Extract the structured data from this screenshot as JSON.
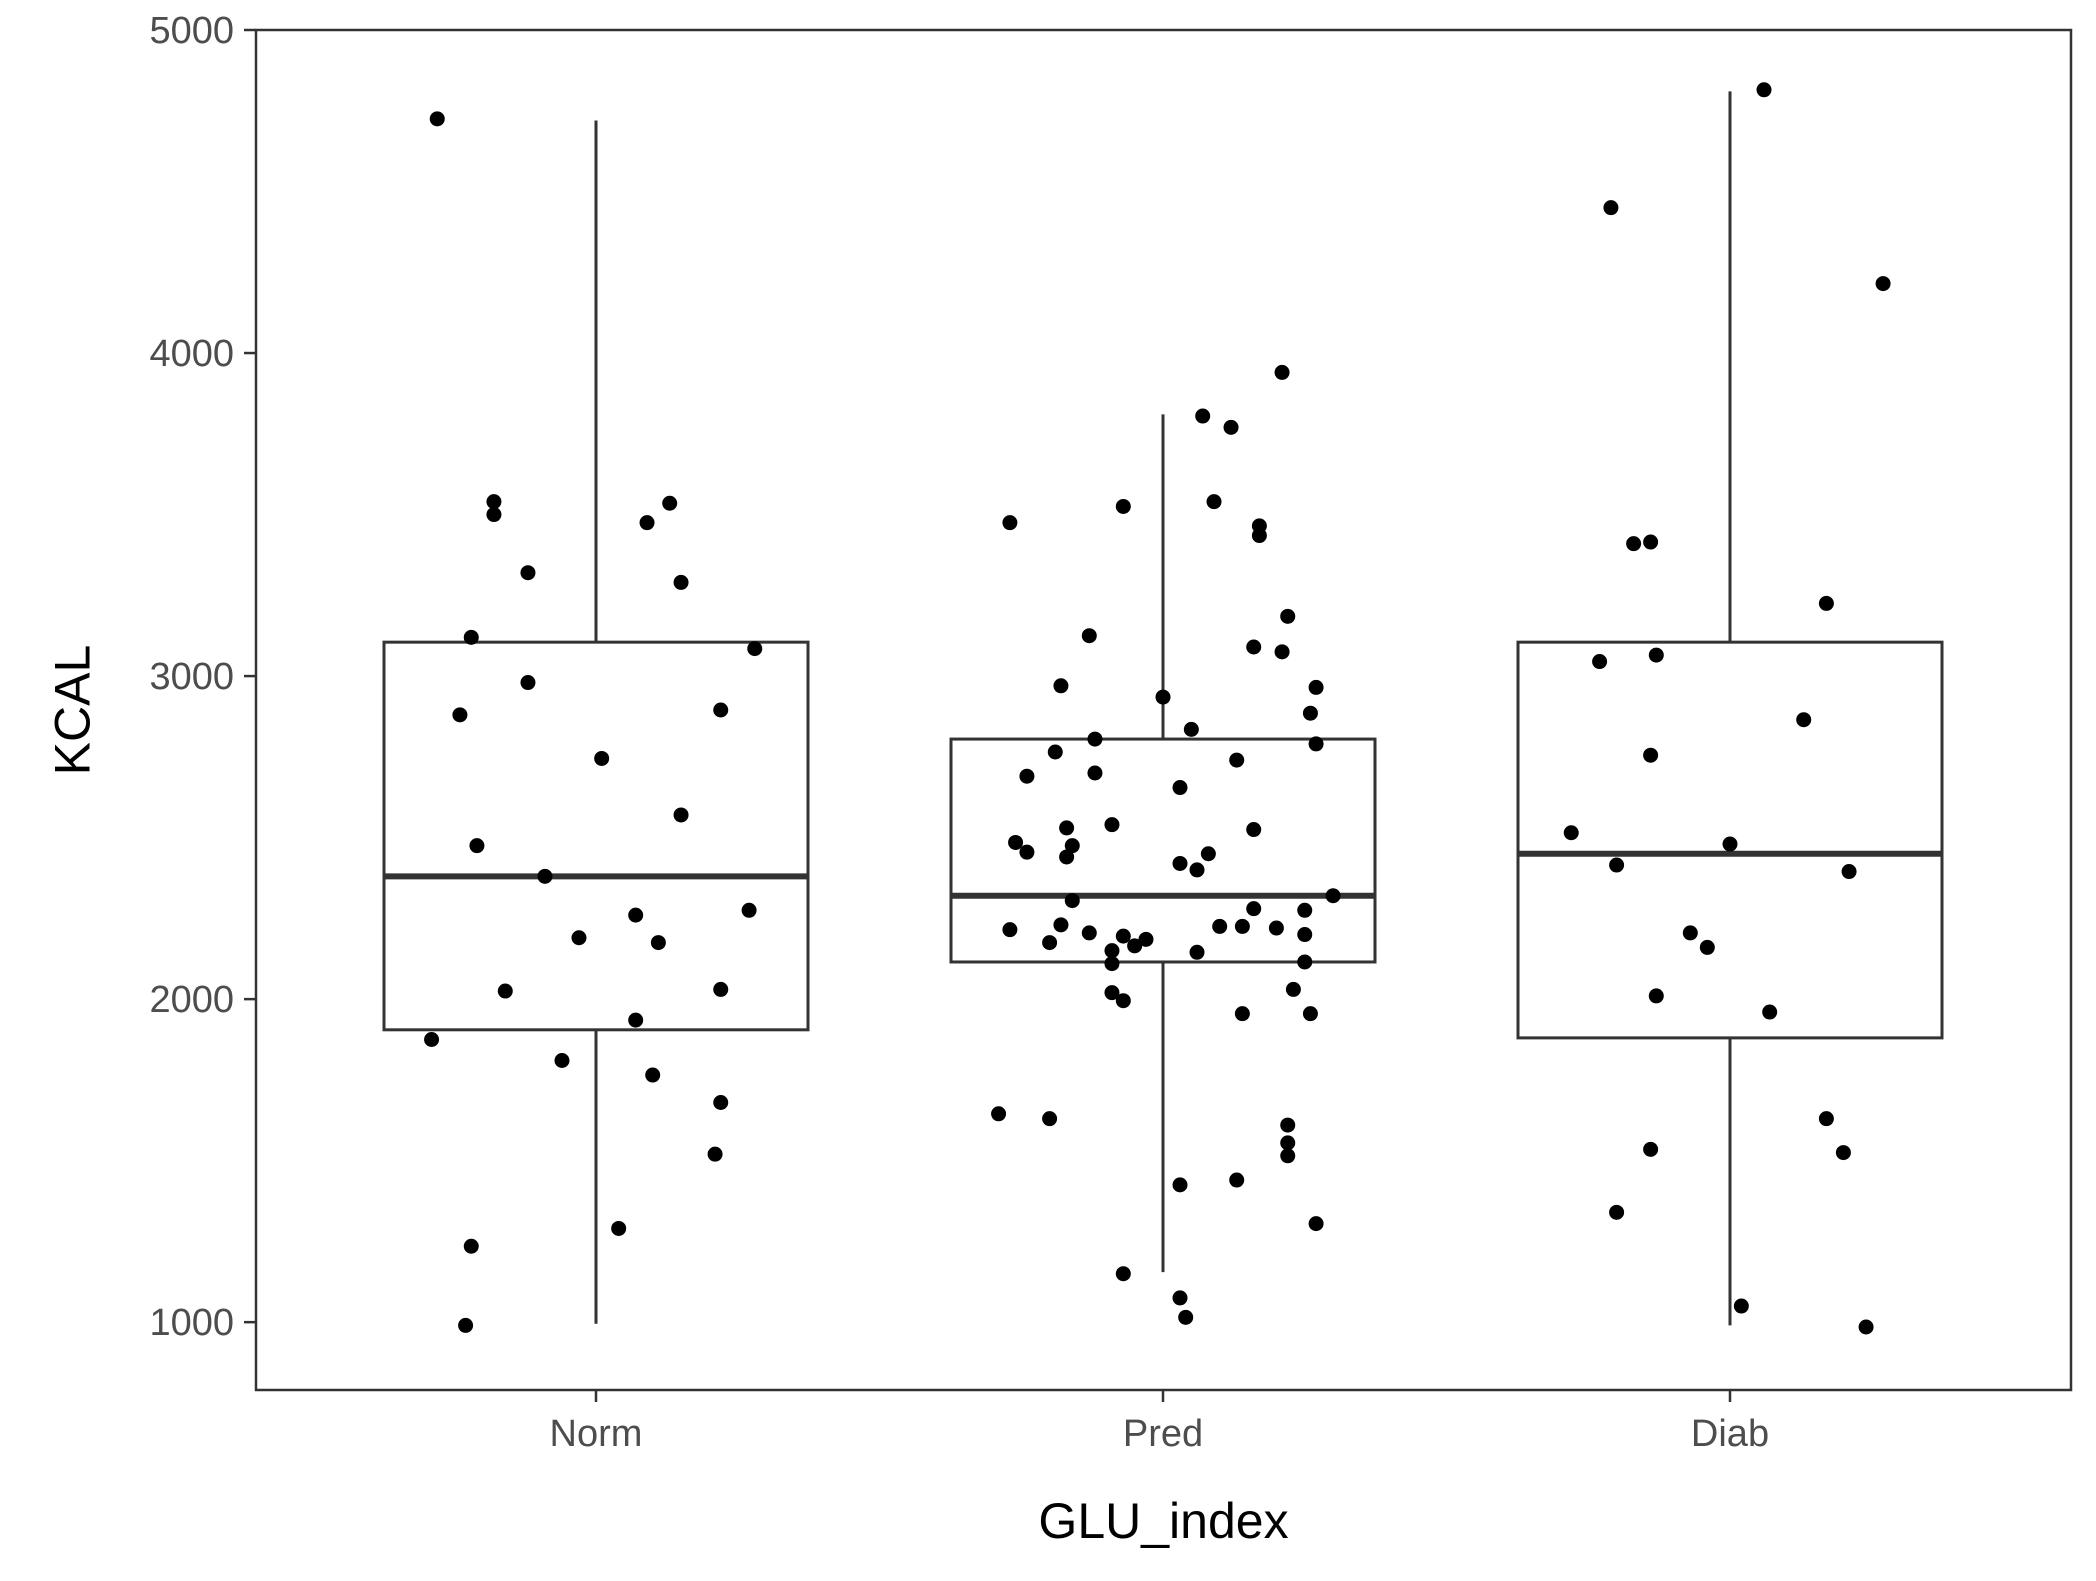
{
  "chart_data": {
    "type": "boxplot",
    "title": "",
    "xlabel": "GLU_index",
    "ylabel": "KCAL",
    "categories": [
      "Norm",
      "Pred",
      "Diab"
    ],
    "ylim": [
      790,
      5000
    ],
    "yticks": [
      1000,
      2000,
      3000,
      4000,
      5000
    ],
    "ytick_labels": [
      "1000",
      "2000",
      "3000",
      "4000",
      "5000"
    ],
    "grid": false,
    "legend": "none",
    "colors": {
      "box": "#333333",
      "points": "#000000",
      "panel_border": "#333333",
      "tick_text": "#4d4d4d"
    },
    "boxes": [
      {
        "category": "Norm",
        "whisker_low": 995,
        "q1": 1905,
        "median": 2380,
        "q3": 3105,
        "whisker_high": 4720
      },
      {
        "category": "Pred",
        "whisker_low": 1155,
        "q1": 2115,
        "median": 2320,
        "q3": 2805,
        "whisker_high": 3810
      },
      {
        "category": "Diab",
        "whisker_low": 990,
        "q1": 1880,
        "median": 2450,
        "q3": 3105,
        "whisker_high": 4810
      }
    ],
    "points": [
      {
        "category": "Norm",
        "jitter": -0.28,
        "y": 4725
      },
      {
        "category": "Norm",
        "jitter": -0.18,
        "y": 3540
      },
      {
        "category": "Norm",
        "jitter": -0.18,
        "y": 3500
      },
      {
        "category": "Norm",
        "jitter": -0.12,
        "y": 3320
      },
      {
        "category": "Norm",
        "jitter": -0.22,
        "y": 3120
      },
      {
        "category": "Norm",
        "jitter": 0.13,
        "y": 3535
      },
      {
        "category": "Norm",
        "jitter": 0.09,
        "y": 3475
      },
      {
        "category": "Norm",
        "jitter": 0.15,
        "y": 3290
      },
      {
        "category": "Norm",
        "jitter": 0.28,
        "y": 3085
      },
      {
        "category": "Norm",
        "jitter": -0.24,
        "y": 2880
      },
      {
        "category": "Norm",
        "jitter": -0.12,
        "y": 2980
      },
      {
        "category": "Norm",
        "jitter": 0.01,
        "y": 2745
      },
      {
        "category": "Norm",
        "jitter": 0.22,
        "y": 2895
      },
      {
        "category": "Norm",
        "jitter": 0.15,
        "y": 2570
      },
      {
        "category": "Norm",
        "jitter": -0.21,
        "y": 2475
      },
      {
        "category": "Norm",
        "jitter": -0.09,
        "y": 2380
      },
      {
        "category": "Norm",
        "jitter": 0.07,
        "y": 2260
      },
      {
        "category": "Norm",
        "jitter": 0.27,
        "y": 2275
      },
      {
        "category": "Norm",
        "jitter": -0.03,
        "y": 2190
      },
      {
        "category": "Norm",
        "jitter": 0.11,
        "y": 2175
      },
      {
        "category": "Norm",
        "jitter": -0.16,
        "y": 2025
      },
      {
        "category": "Norm",
        "jitter": 0.22,
        "y": 2030
      },
      {
        "category": "Norm",
        "jitter": 0.07,
        "y": 1935
      },
      {
        "category": "Norm",
        "jitter": -0.29,
        "y": 1875
      },
      {
        "category": "Norm",
        "jitter": -0.06,
        "y": 1810
      },
      {
        "category": "Norm",
        "jitter": 0.1,
        "y": 1765
      },
      {
        "category": "Norm",
        "jitter": 0.22,
        "y": 1680
      },
      {
        "category": "Norm",
        "jitter": 0.21,
        "y": 1520
      },
      {
        "category": "Norm",
        "jitter": 0.04,
        "y": 1290
      },
      {
        "category": "Norm",
        "jitter": -0.22,
        "y": 1235
      },
      {
        "category": "Norm",
        "jitter": -0.23,
        "y": 990
      },
      {
        "category": "Pred",
        "jitter": 0.21,
        "y": 3940
      },
      {
        "category": "Pred",
        "jitter": 0.07,
        "y": 3805
      },
      {
        "category": "Pred",
        "jitter": 0.12,
        "y": 3770
      },
      {
        "category": "Pred",
        "jitter": 0.09,
        "y": 3540
      },
      {
        "category": "Pred",
        "jitter": -0.07,
        "y": 3525
      },
      {
        "category": "Pred",
        "jitter": -0.27,
        "y": 3475
      },
      {
        "category": "Pred",
        "jitter": 0.17,
        "y": 3465
      },
      {
        "category": "Pred",
        "jitter": 0.17,
        "y": 3435
      },
      {
        "category": "Pred",
        "jitter": 0.22,
        "y": 3185
      },
      {
        "category": "Pred",
        "jitter": -0.13,
        "y": 3125
      },
      {
        "category": "Pred",
        "jitter": 0.16,
        "y": 3090
      },
      {
        "category": "Pred",
        "jitter": 0.21,
        "y": 3075
      },
      {
        "category": "Pred",
        "jitter": -0.18,
        "y": 2970
      },
      {
        "category": "Pred",
        "jitter": 0.27,
        "y": 2965
      },
      {
        "category": "Pred",
        "jitter": 0.0,
        "y": 2935
      },
      {
        "category": "Pred",
        "jitter": 0.26,
        "y": 2885
      },
      {
        "category": "Pred",
        "jitter": 0.05,
        "y": 2835
      },
      {
        "category": "Pred",
        "jitter": -0.12,
        "y": 2805
      },
      {
        "category": "Pred",
        "jitter": 0.27,
        "y": 2790
      },
      {
        "category": "Pred",
        "jitter": -0.19,
        "y": 2765
      },
      {
        "category": "Pred",
        "jitter": 0.13,
        "y": 2740
      },
      {
        "category": "Pred",
        "jitter": -0.12,
        "y": 2700
      },
      {
        "category": "Pred",
        "jitter": -0.24,
        "y": 2690
      },
      {
        "category": "Pred",
        "jitter": 0.03,
        "y": 2655
      },
      {
        "category": "Pred",
        "jitter": -0.09,
        "y": 2540
      },
      {
        "category": "Pred",
        "jitter": -0.17,
        "y": 2530
      },
      {
        "category": "Pred",
        "jitter": 0.16,
        "y": 2525
      },
      {
        "category": "Pred",
        "jitter": -0.26,
        "y": 2485
      },
      {
        "category": "Pred",
        "jitter": -0.16,
        "y": 2475
      },
      {
        "category": "Pred",
        "jitter": -0.24,
        "y": 2455
      },
      {
        "category": "Pred",
        "jitter": 0.08,
        "y": 2450
      },
      {
        "category": "Pred",
        "jitter": -0.17,
        "y": 2440
      },
      {
        "category": "Pred",
        "jitter": 0.03,
        "y": 2420
      },
      {
        "category": "Pred",
        "jitter": 0.06,
        "y": 2400
      },
      {
        "category": "Pred",
        "jitter": 0.3,
        "y": 2320
      },
      {
        "category": "Pred",
        "jitter": -0.16,
        "y": 2305
      },
      {
        "category": "Pred",
        "jitter": 0.16,
        "y": 2280
      },
      {
        "category": "Pred",
        "jitter": 0.25,
        "y": 2275
      },
      {
        "category": "Pred",
        "jitter": -0.18,
        "y": 2230
      },
      {
        "category": "Pred",
        "jitter": 0.1,
        "y": 2225
      },
      {
        "category": "Pred",
        "jitter": 0.14,
        "y": 2225
      },
      {
        "category": "Pred",
        "jitter": -0.27,
        "y": 2215
      },
      {
        "category": "Pred",
        "jitter": 0.2,
        "y": 2220
      },
      {
        "category": "Pred",
        "jitter": -0.13,
        "y": 2205
      },
      {
        "category": "Pred",
        "jitter": -0.07,
        "y": 2195
      },
      {
        "category": "Pred",
        "jitter": 0.25,
        "y": 2200
      },
      {
        "category": "Pred",
        "jitter": -0.03,
        "y": 2185
      },
      {
        "category": "Pred",
        "jitter": -0.2,
        "y": 2175
      },
      {
        "category": "Pred",
        "jitter": -0.05,
        "y": 2165
      },
      {
        "category": "Pred",
        "jitter": -0.09,
        "y": 2150
      },
      {
        "category": "Pred",
        "jitter": 0.06,
        "y": 2145
      },
      {
        "category": "Pred",
        "jitter": -0.09,
        "y": 2110
      },
      {
        "category": "Pred",
        "jitter": 0.25,
        "y": 2115
      },
      {
        "category": "Pred",
        "jitter": 0.23,
        "y": 2030
      },
      {
        "category": "Pred",
        "jitter": -0.09,
        "y": 2020
      },
      {
        "category": "Pred",
        "jitter": -0.07,
        "y": 1995
      },
      {
        "category": "Pred",
        "jitter": 0.14,
        "y": 1955
      },
      {
        "category": "Pred",
        "jitter": 0.26,
        "y": 1955
      },
      {
        "category": "Pred",
        "jitter": -0.29,
        "y": 1645
      },
      {
        "category": "Pred",
        "jitter": -0.2,
        "y": 1630
      },
      {
        "category": "Pred",
        "jitter": 0.22,
        "y": 1610
      },
      {
        "category": "Pred",
        "jitter": 0.22,
        "y": 1555
      },
      {
        "category": "Pred",
        "jitter": 0.22,
        "y": 1515
      },
      {
        "category": "Pred",
        "jitter": 0.13,
        "y": 1440
      },
      {
        "category": "Pred",
        "jitter": 0.03,
        "y": 1425
      },
      {
        "category": "Pred",
        "jitter": 0.27,
        "y": 1305
      },
      {
        "category": "Pred",
        "jitter": -0.07,
        "y": 1150
      },
      {
        "category": "Pred",
        "jitter": 0.03,
        "y": 1075
      },
      {
        "category": "Pred",
        "jitter": 0.04,
        "y": 1015
      },
      {
        "category": "Diab",
        "jitter": 0.06,
        "y": 4815
      },
      {
        "category": "Diab",
        "jitter": -0.21,
        "y": 4450
      },
      {
        "category": "Diab",
        "jitter": 0.27,
        "y": 4215
      },
      {
        "category": "Diab",
        "jitter": -0.17,
        "y": 3410
      },
      {
        "category": "Diab",
        "jitter": -0.14,
        "y": 3415
      },
      {
        "category": "Diab",
        "jitter": 0.17,
        "y": 3225
      },
      {
        "category": "Diab",
        "jitter": -0.23,
        "y": 3045
      },
      {
        "category": "Diab",
        "jitter": -0.13,
        "y": 3065
      },
      {
        "category": "Diab",
        "jitter": 0.13,
        "y": 2865
      },
      {
        "category": "Diab",
        "jitter": -0.14,
        "y": 2755
      },
      {
        "category": "Diab",
        "jitter": -0.28,
        "y": 2515
      },
      {
        "category": "Diab",
        "jitter": 0.0,
        "y": 2480
      },
      {
        "category": "Diab",
        "jitter": -0.2,
        "y": 2415
      },
      {
        "category": "Diab",
        "jitter": 0.21,
        "y": 2395
      },
      {
        "category": "Diab",
        "jitter": -0.07,
        "y": 2205
      },
      {
        "category": "Diab",
        "jitter": -0.04,
        "y": 2160
      },
      {
        "category": "Diab",
        "jitter": -0.13,
        "y": 2010
      },
      {
        "category": "Diab",
        "jitter": 0.07,
        "y": 1960
      },
      {
        "category": "Diab",
        "jitter": 0.17,
        "y": 1630
      },
      {
        "category": "Diab",
        "jitter": -0.14,
        "y": 1535
      },
      {
        "category": "Diab",
        "jitter": 0.2,
        "y": 1525
      },
      {
        "category": "Diab",
        "jitter": -0.2,
        "y": 1340
      },
      {
        "category": "Diab",
        "jitter": 0.02,
        "y": 1050
      },
      {
        "category": "Diab",
        "jitter": 0.24,
        "y": 985
      }
    ]
  }
}
